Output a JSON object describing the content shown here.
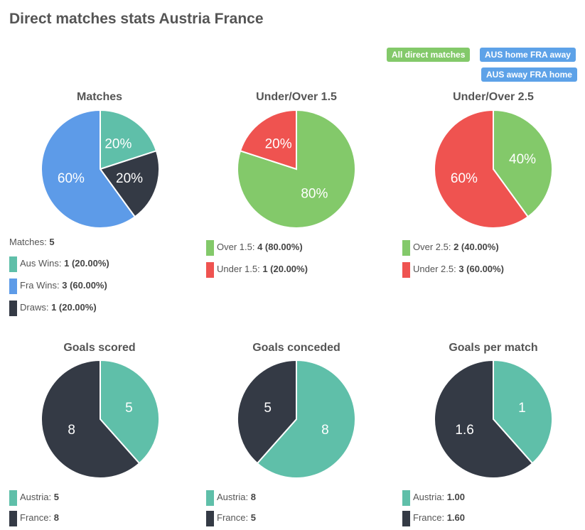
{
  "page": {
    "title": "Direct matches stats Austria France",
    "buttons": [
      "All direct matches",
      "AUS home FRA away",
      "AUS away FRA home"
    ]
  },
  "colors": {
    "teal": "#5fbfa9",
    "dark": "#343a45",
    "blue": "#5d9be8",
    "green": "#83c96a",
    "red": "#ef5350",
    "button_green": "#83c96a",
    "button_blue": "#5da2e8"
  },
  "chart_data": [
    {
      "type": "pie",
      "title": "Matches",
      "summary": {
        "label": "Matches: ",
        "value": "5"
      },
      "slices": [
        {
          "name": "Aus Wins",
          "value": 1,
          "label": "20%",
          "color": "#5fbfa9",
          "legend_label": "Aus Wins: ",
          "legend_value": "1 (20.00%)"
        },
        {
          "name": "Draws",
          "value": 1,
          "label": "20%",
          "color": "#343a45",
          "legend_label": "Draws: ",
          "legend_value": "1 (20.00%)"
        },
        {
          "name": "Fra Wins",
          "value": 3,
          "label": "60%",
          "color": "#5d9be8",
          "legend_label": "Fra Wins: ",
          "legend_value": "3 (60.00%)"
        }
      ],
      "legend_order": [
        0,
        2,
        1
      ]
    },
    {
      "type": "pie",
      "title": "Under/Over 1.5",
      "slices": [
        {
          "name": "Over 1.5",
          "value": 4,
          "label": "80%",
          "color": "#83c96a",
          "legend_label": "Over 1.5: ",
          "legend_value": "4 (80.00%)"
        },
        {
          "name": "Under 1.5",
          "value": 1,
          "label": "20%",
          "color": "#ef5350",
          "legend_label": "Under 1.5: ",
          "legend_value": "1 (20.00%)"
        }
      ],
      "legend_order": [
        0,
        1
      ]
    },
    {
      "type": "pie",
      "title": "Under/Over 2.5",
      "slices": [
        {
          "name": "Over 2.5",
          "value": 2,
          "label": "40%",
          "color": "#83c96a",
          "legend_label": "Over 2.5: ",
          "legend_value": "2 (40.00%)"
        },
        {
          "name": "Under 2.5",
          "value": 3,
          "label": "60%",
          "color": "#ef5350",
          "legend_label": "Under 2.5: ",
          "legend_value": "3 (60.00%)"
        }
      ],
      "legend_order": [
        0,
        1
      ]
    },
    {
      "type": "pie",
      "title": "Goals scored",
      "slices": [
        {
          "name": "Austria",
          "value": 5,
          "label": "5",
          "color": "#5fbfa9",
          "legend_label": "Austria: ",
          "legend_value": "5"
        },
        {
          "name": "France",
          "value": 8,
          "label": "8",
          "color": "#343a45",
          "legend_label": "France: ",
          "legend_value": "8"
        }
      ],
      "legend_order": [
        0,
        1
      ]
    },
    {
      "type": "pie",
      "title": "Goals conceded",
      "slices": [
        {
          "name": "Austria",
          "value": 8,
          "label": "8",
          "color": "#5fbfa9",
          "legend_label": "Austria: ",
          "legend_value": "8"
        },
        {
          "name": "France",
          "value": 5,
          "label": "5",
          "color": "#343a45",
          "legend_label": "France: ",
          "legend_value": "5"
        }
      ],
      "legend_order": [
        0,
        1
      ]
    },
    {
      "type": "pie",
      "title": "Goals per match",
      "slices": [
        {
          "name": "Austria",
          "value": 1.0,
          "label": "1",
          "color": "#5fbfa9",
          "legend_label": "Austria: ",
          "legend_value": "1.00"
        },
        {
          "name": "France",
          "value": 1.6,
          "label": "1.6",
          "color": "#343a45",
          "legend_label": "France: ",
          "legend_value": "1.60"
        }
      ],
      "legend_order": [
        0,
        1
      ]
    }
  ]
}
